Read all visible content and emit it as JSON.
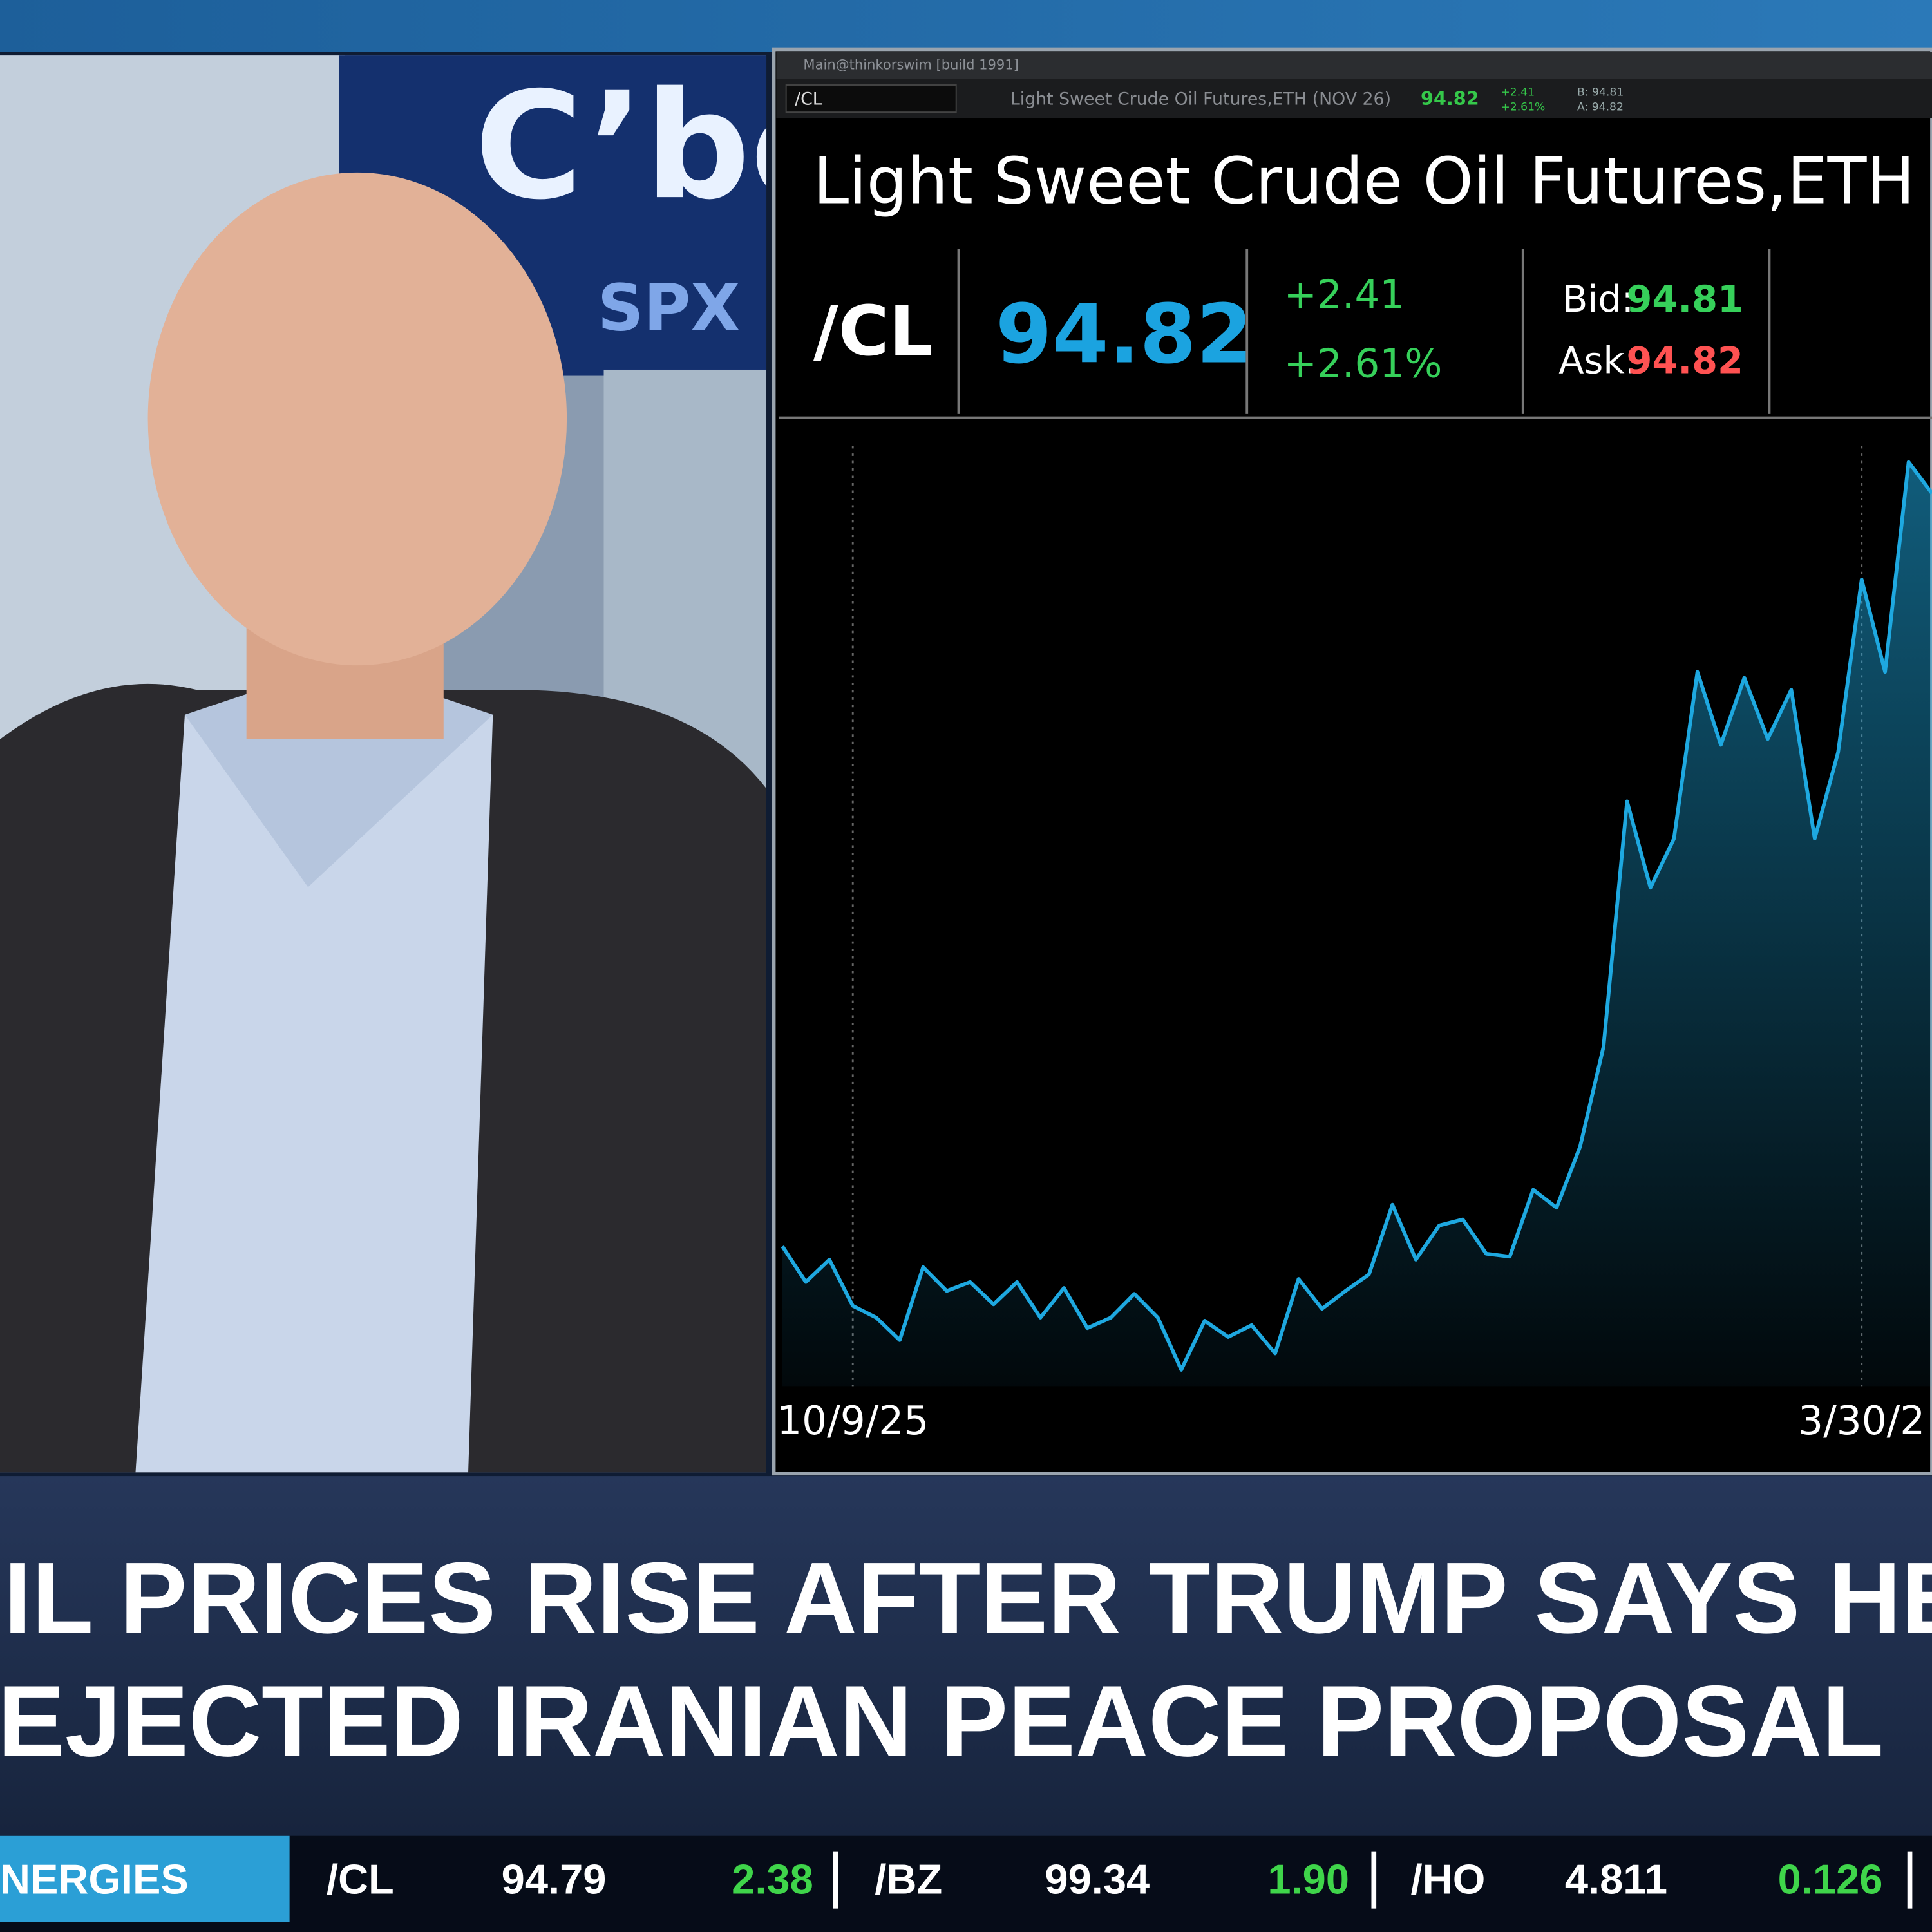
{
  "video": {
    "logo": "C’bo",
    "banner": "SPX"
  },
  "window": {
    "title": "Main@thinkorswim [build 1991]",
    "symbol_box": "/CL",
    "description": "Light Sweet Crude Oil Futures,ETH (NOV 26)",
    "last": "94.82",
    "change": "+2.41",
    "change_pct": "+2.61%",
    "bid": "B: 94.81",
    "ask": "A: 94.82"
  },
  "quote": {
    "name": "Light Sweet Crude Oil Futures,ETH",
    "symbol": "/CL",
    "last": "94.82",
    "change": "+2.41",
    "change_pct": "+2.61%",
    "bid_label": "Bid:",
    "bid": "94.81",
    "ask_label": "Ask:",
    "ask": "94.82"
  },
  "chart_data": {
    "type": "line",
    "color": "#1ea8e0",
    "categories": [
      null,
      null,
      null,
      "10/9/25",
      null,
      null,
      null,
      null,
      null,
      null,
      null,
      null,
      null,
      null,
      null,
      null,
      null,
      null,
      null,
      null,
      null,
      null,
      null,
      null,
      null,
      null,
      null,
      null,
      null,
      null,
      null,
      null,
      null,
      null,
      null,
      null,
      null,
      null,
      null,
      null,
      null,
      null,
      null,
      null,
      null,
      null,
      "3/30/2",
      null,
      null,
      null
    ],
    "values": [
      59.4,
      57.0,
      58.5,
      55.4,
      54.6,
      53.1,
      58.0,
      56.4,
      57.0,
      55.5,
      57.0,
      54.6,
      56.6,
      53.9,
      54.6,
      56.2,
      54.6,
      51.1,
      54.4,
      53.3,
      54.1,
      52.2,
      57.2,
      55.2,
      56.4,
      57.5,
      62.2,
      58.5,
      60.8,
      61.2,
      58.9,
      58.7,
      63.2,
      62.0,
      66.1,
      72.8,
      89.3,
      83.5,
      86.8,
      98.0,
      93.1,
      97.6,
      93.5,
      96.8,
      86.8,
      92.6,
      104.2,
      98.0,
      112.1,
      110.0
    ],
    "ylim": [
      50,
      115
    ]
  },
  "headline": {
    "lines": [
      "IL PRICES RISE AFTER TRUMP SAYS HE",
      "EJECTED IRANIAN PEACE PROPOSAL"
    ]
  },
  "ticker": {
    "section": "NERGIES",
    "items": [
      {
        "symbol": "/CL",
        "last": "94.79",
        "change": "2.38"
      },
      {
        "symbol": "/BZ",
        "last": "99.34",
        "change": "1.90"
      },
      {
        "symbol": "/HO",
        "last": "4.811",
        "change": "0.126"
      }
    ]
  }
}
